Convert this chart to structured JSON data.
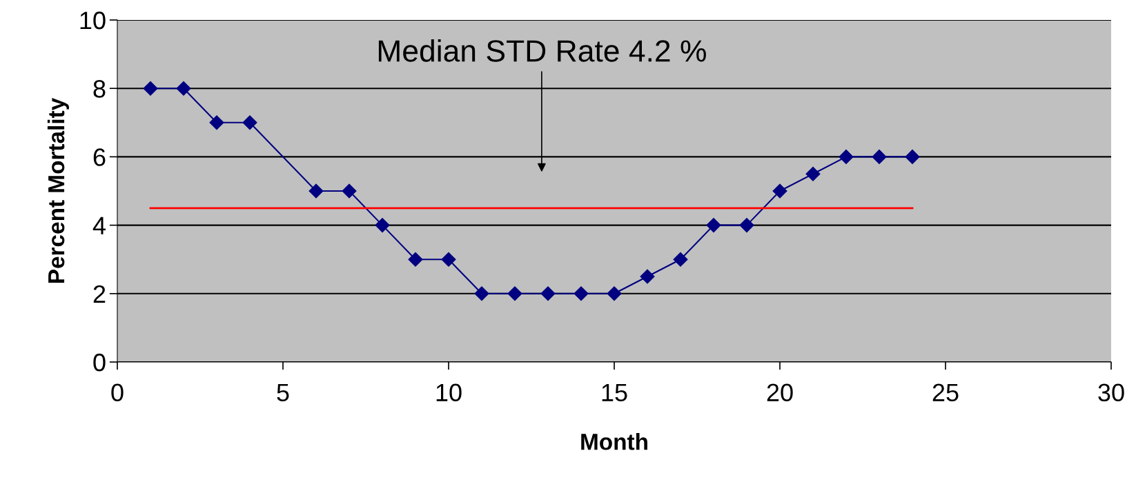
{
  "chart_data": {
    "type": "line",
    "xlabel": "Month",
    "ylabel": "Percent Mortality",
    "series": [
      {
        "color": "#000080",
        "marker": "diamond",
        "x": [
          1,
          2,
          3,
          4,
          6,
          7,
          8,
          9,
          10,
          11,
          12,
          13,
          14,
          15,
          16,
          17,
          18,
          19,
          20,
          21,
          22,
          23,
          24
        ],
        "values": [
          8,
          8,
          7,
          7,
          5,
          5,
          4,
          3,
          3,
          2,
          2,
          2,
          2,
          2,
          2.5,
          3,
          4,
          4,
          5,
          5.5,
          6,
          6,
          6
        ]
      },
      {
        "color": "#ff0000",
        "marker": "none",
        "x": [
          1,
          24
        ],
        "values": [
          4.5,
          4.5
        ]
      }
    ],
    "annotations": [
      "Median STD Rate 4.2 %"
    ],
    "xlim": [
      0,
      30
    ],
    "xticks": [
      0,
      5,
      10,
      15,
      20,
      25,
      30
    ],
    "ylim": [
      0,
      10
    ],
    "yticks": [
      0,
      2,
      4,
      6,
      8,
      10
    ],
    "grid": "y"
  }
}
